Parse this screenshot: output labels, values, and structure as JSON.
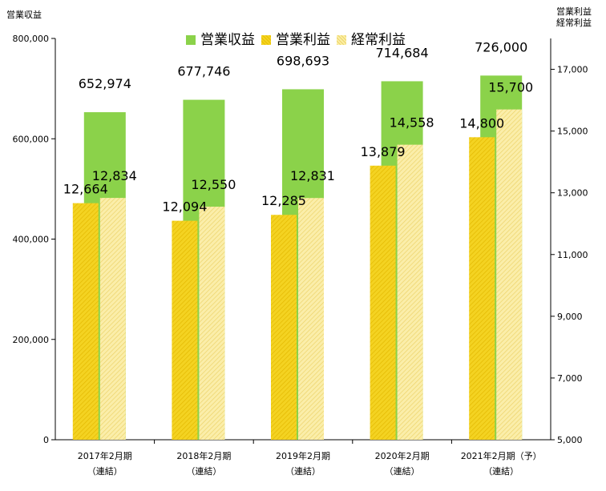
{
  "chart_data": {
    "type": "bar",
    "left_axis": {
      "title": "営業収益",
      "ylim": [
        0,
        800000
      ],
      "ticks": [
        "800,000",
        "600,000",
        "400,000",
        "200,000",
        "0"
      ],
      "tick_values": [
        800000,
        600000,
        400000,
        200000,
        0
      ]
    },
    "right_axis": {
      "title_line1": "営業利益",
      "title_line2": "経常利益",
      "ylim": [
        5000,
        18000
      ],
      "ticks": [
        "17,000",
        "15,000",
        "13,000",
        "11,000",
        "9,000",
        "7,000",
        "5,000"
      ],
      "tick_values": [
        17000,
        15000,
        13000,
        11000,
        9000,
        7000,
        5000
      ]
    },
    "categories": [
      {
        "line1": "2017年2月期",
        "line2": "（連結）"
      },
      {
        "line1": "2018年2月期",
        "line2": "（連結）"
      },
      {
        "line1": "2019年2月期",
        "line2": "（連結）"
      },
      {
        "line1": "2020年2月期",
        "line2": "（連結）"
      },
      {
        "line1": "2021年2月期（予）",
        "line2": "（連結）"
      }
    ],
    "series": [
      {
        "name": "営業収益",
        "axis": "left",
        "color": "#8bd24a",
        "values": [
          652974,
          677746,
          698693,
          714684,
          726000
        ],
        "labels": [
          "652,974",
          "677,746",
          "698,693",
          "714,684",
          "726,000"
        ]
      },
      {
        "name": "営業利益",
        "axis": "right",
        "color": "#f2cc17",
        "values": [
          12664,
          12094,
          12285,
          13879,
          14800
        ],
        "labels": [
          "12,664",
          "12,094",
          "12,285",
          "13,879",
          "14,800"
        ]
      },
      {
        "name": "経常利益",
        "axis": "right",
        "color": "#f8e27a",
        "values": [
          12834,
          12550,
          12831,
          14558,
          15700
        ],
        "labels": [
          "12,834",
          "12,550",
          "12,831",
          "14,558",
          "15,700"
        ]
      }
    ],
    "legend": {
      "position": "top-center"
    },
    "grid": false
  }
}
